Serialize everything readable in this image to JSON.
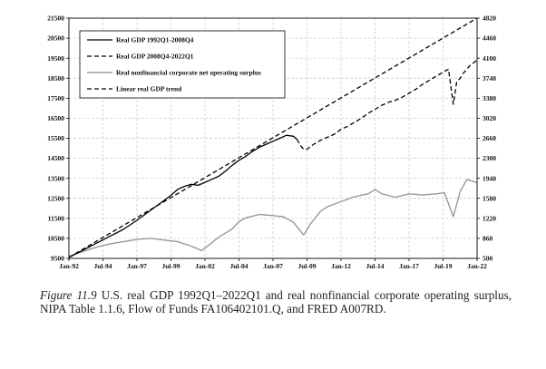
{
  "chart_data": {
    "type": "line",
    "title": "",
    "xlabel": "",
    "ylabel": "",
    "x_ticks": [
      "Jan-92",
      "Jul-94",
      "Jan-97",
      "Jul-99",
      "Jan-02",
      "Jul-04",
      "Jan-07",
      "Jul-09",
      "Jan-12",
      "Jul-14",
      "Jan-17",
      "Jul-19",
      "Jan-22"
    ],
    "x_range": [
      1992.0,
      2022.0
    ],
    "y_left_ticks": [
      "9500",
      "10500",
      "11500",
      "12500",
      "13500",
      "14500",
      "15500",
      "16500",
      "17500",
      "18500",
      "19500",
      "20500",
      "21500"
    ],
    "y_right_ticks": [
      "500",
      "860",
      "1220",
      "1580",
      "1940",
      "2300",
      "2660",
      "3020",
      "3380",
      "3740",
      "4100",
      "4460",
      "4820"
    ],
    "ylim_left": [
      9500,
      21500
    ],
    "ylim_right": [
      500,
      4820
    ],
    "grid": true,
    "legend_position": "top-left",
    "series": [
      {
        "name": "Real GDP 1992Q1-2008Q4",
        "axis": "left",
        "style": "solid",
        "color": "#000000",
        "x": [
          1992.0,
          1993.0,
          1994.0,
          1995.0,
          1996.0,
          1997.0,
          1998.0,
          1999.0,
          1999.5,
          2000.0,
          2000.5,
          2001.0,
          2001.5,
          2002.0,
          2002.5,
          2003.0,
          2003.5,
          2004.0,
          2004.5,
          2005.0,
          2005.5,
          2006.0,
          2006.5,
          2007.0,
          2007.5,
          2008.0,
          2008.5,
          2008.75
        ],
        "y": [
          9550,
          9900,
          10250,
          10600,
          10950,
          11400,
          11900,
          12400,
          12650,
          12950,
          13100,
          13200,
          13150,
          13300,
          13450,
          13600,
          13850,
          14150,
          14400,
          14600,
          14850,
          15050,
          15200,
          15350,
          15500,
          15650,
          15600,
          15450
        ]
      },
      {
        "name": "Real GDP 2008Q4-2022Q1",
        "axis": "left",
        "style": "dashed",
        "color": "#000000",
        "x": [
          2008.75,
          2009.0,
          2009.25,
          2009.5,
          2010.0,
          2010.5,
          2011.0,
          2011.5,
          2012.0,
          2012.5,
          2013.0,
          2013.5,
          2014.0,
          2014.5,
          2015.0,
          2015.5,
          2016.0,
          2016.5,
          2017.0,
          2017.5,
          2018.0,
          2018.5,
          2019.0,
          2019.5,
          2019.9,
          2020.25,
          2020.5,
          2020.75,
          2021.0,
          2021.5,
          2022.0
        ],
        "y": [
          15450,
          15150,
          14950,
          14950,
          15200,
          15400,
          15550,
          15700,
          15950,
          16100,
          16300,
          16500,
          16750,
          16950,
          17150,
          17300,
          17400,
          17550,
          17750,
          17950,
          18200,
          18400,
          18600,
          18800,
          18950,
          17200,
          18300,
          18500,
          18750,
          19150,
          19400
        ]
      },
      {
        "name": "Real nonfinancial corporate net operating surplus",
        "axis": "right",
        "style": "solid",
        "color": "#999999",
        "x": [
          1992.0,
          1993.0,
          1994.0,
          1995.0,
          1996.0,
          1997.0,
          1998.0,
          1999.0,
          2000.0,
          2001.0,
          2001.75,
          2002.5,
          2003.0,
          2004.0,
          2004.5,
          2005.0,
          2005.5,
          2006.0,
          2007.0,
          2007.75,
          2008.5,
          2009.25,
          2009.75,
          2010.5,
          2011.0,
          2012.0,
          2013.0,
          2014.0,
          2014.5,
          2015.0,
          2016.0,
          2017.0,
          2018.0,
          2019.0,
          2019.6,
          2020.25,
          2020.75,
          2021.25,
          2021.75,
          2022.0
        ],
        "y": [
          540,
          620,
          700,
          760,
          800,
          840,
          860,
          830,
          800,
          720,
          640,
          780,
          880,
          1030,
          1160,
          1230,
          1260,
          1290,
          1270,
          1250,
          1150,
          920,
          1120,
          1350,
          1430,
          1520,
          1610,
          1660,
          1740,
          1660,
          1600,
          1660,
          1640,
          1660,
          1680,
          1250,
          1700,
          1920,
          1880,
          1860
        ]
      },
      {
        "name": "Linear real GDP trend",
        "axis": "left",
        "style": "dashed",
        "color": "#000000",
        "x": [
          1992.0,
          2022.0
        ],
        "y": [
          9550,
          21500
        ]
      }
    ]
  },
  "caption": {
    "label": "Figure 11.9",
    "text": "U.S. real GDP 1992Q1–2022Q1 and real nonfinancial corporate operating surplus, NIPA Table 1.1.6, Flow of Funds FA106402101.Q, and FRED A007RD."
  }
}
